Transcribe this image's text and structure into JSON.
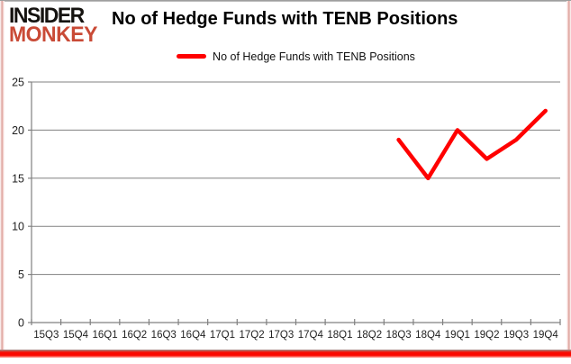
{
  "logo": {
    "line1": "INSIDER",
    "line2": "MONKEY",
    "brand_black": "#151310",
    "brand_red": "#c94a36"
  },
  "header": {
    "title": "No of Hedge Funds with TENB Positions"
  },
  "legend": {
    "label": "No of Hedge Funds with TENB Positions"
  },
  "colors": {
    "series_line": "#ff0000",
    "gridline": "#808080",
    "axis": "#808080",
    "tick_label": "#1f1f1f",
    "background": "#ffffff",
    "frame_red": "#fb0800"
  },
  "chart_data": {
    "type": "line",
    "title": "No of Hedge Funds with TENB Positions",
    "categories": [
      "15Q3",
      "15Q4",
      "16Q1",
      "16Q2",
      "16Q3",
      "16Q4",
      "17Q1",
      "17Q2",
      "17Q3",
      "17Q4",
      "18Q1",
      "18Q2",
      "18Q3",
      "18Q4",
      "19Q1",
      "19Q2",
      "19Q3",
      "19Q4"
    ],
    "series": [
      {
        "name": "No of Hedge Funds with TENB Positions",
        "color": "#ff0000",
        "values": [
          null,
          null,
          null,
          null,
          null,
          null,
          null,
          null,
          null,
          null,
          null,
          null,
          19,
          15,
          20,
          17,
          19,
          22
        ]
      }
    ],
    "xlabel": "",
    "ylabel": "",
    "ylim": [
      0,
      25
    ],
    "yticks": [
      0,
      5,
      10,
      15,
      20,
      25
    ],
    "grid": true,
    "legend_position": "top-center"
  }
}
